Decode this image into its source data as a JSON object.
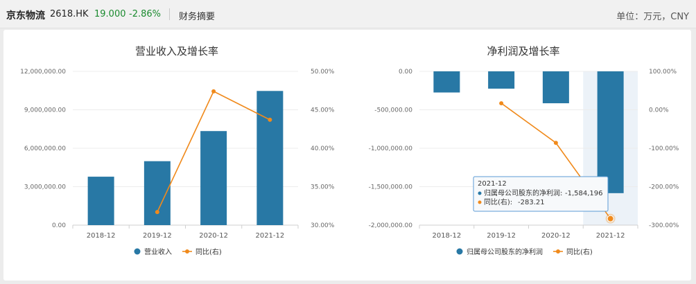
{
  "header": {
    "name": "京东物流",
    "code": "2618.HK",
    "price": "19.000",
    "change": "-2.86%",
    "section": "财务摘要",
    "unit": "单位：万元，CNY"
  },
  "colors": {
    "bar": "#2878a5",
    "line": "#f08a1c",
    "highlight": "#dfe9f3"
  },
  "chart_data": [
    {
      "type": "bar",
      "title": "营业收入及增长率",
      "categories": [
        "2018-12",
        "2019-12",
        "2020-12",
        "2021-12"
      ],
      "y_left": {
        "min": 0,
        "max": 12000000,
        "ticks": [
          "12,000,000.00",
          "9,000,000.00",
          "6,000,000.00",
          "3,000,000.00",
          "0.00"
        ]
      },
      "y_right": {
        "min": 30,
        "max": 50,
        "ticks": [
          "50.00%",
          "45.00%",
          "40.00%",
          "35.00%",
          "30.00%"
        ]
      },
      "series": [
        {
          "name": "营业收入",
          "type": "bar",
          "axis": "left",
          "values": [
            3780000,
            4990000,
            7340000,
            10470000
          ]
        },
        {
          "name": "同比(右)",
          "type": "line",
          "axis": "right",
          "values": [
            null,
            31.7,
            47.4,
            43.7
          ]
        }
      ],
      "legend": [
        "营业收入",
        "同比(右)"
      ]
    },
    {
      "type": "bar",
      "title": "净利润及增长率",
      "categories": [
        "2018-12",
        "2019-12",
        "2020-12",
        "2021-12"
      ],
      "y_left": {
        "min": -2000000,
        "max": 0,
        "ticks": [
          "0.00",
          "-500,000.00",
          "-1,000,000.00",
          "-1,500,000.00",
          "-2,000,000.00"
        ]
      },
      "y_right": {
        "min": -300,
        "max": 100,
        "ticks": [
          "100.00%",
          "0.00%",
          "-100.00%",
          "-200.00%",
          "-300.00%"
        ]
      },
      "series": [
        {
          "name": "归属母公司股东的净利润",
          "type": "bar",
          "axis": "left",
          "values": [
            -275000,
            -225000,
            -415000,
            -1584196
          ]
        },
        {
          "name": "同比(右)",
          "type": "line",
          "axis": "right",
          "values": [
            null,
            17,
            -86,
            -283.21
          ]
        }
      ],
      "legend": [
        "归属母公司股东的净利润",
        "同比(右)"
      ],
      "tooltip": {
        "category": "2021-12",
        "line1_label": "归属母公司股东的净利润:",
        "line1_value": "-1,584,196",
        "line2_label": "同比(右):",
        "line2_value": "-283.21"
      }
    }
  ]
}
